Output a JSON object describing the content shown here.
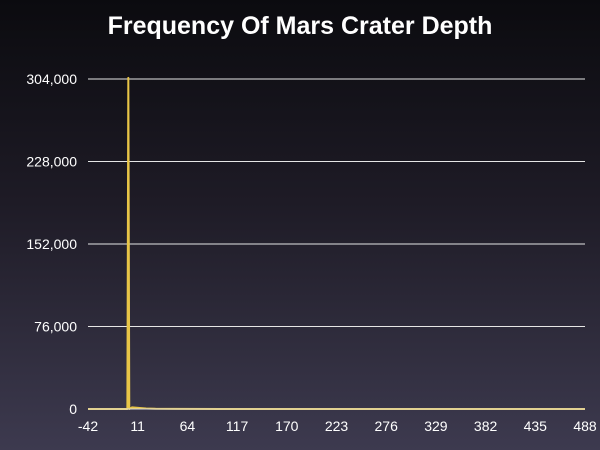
{
  "chart_data": {
    "type": "line",
    "title": "Frequency Of Mars Crater Depth",
    "xlabel": "",
    "ylabel": "",
    "x_ticks": [
      "-42",
      "11",
      "64",
      "117",
      "170",
      "223",
      "276",
      "329",
      "382",
      "435",
      "488"
    ],
    "y_ticks": [
      "0",
      "76,000",
      "152,000",
      "228,000",
      "304,000"
    ],
    "xlim": [
      -42,
      488
    ],
    "ylim": [
      0,
      304000
    ],
    "grid": true,
    "legend": "none",
    "series": [
      {
        "color": "#e8c547",
        "x": [
          -42,
          -10,
          0,
          1,
          2,
          5,
          10,
          15,
          20,
          30,
          50,
          100,
          200,
          300,
          400,
          488
        ],
        "y": [
          0,
          0,
          0,
          305000,
          0,
          1500,
          1200,
          800,
          500,
          200,
          80,
          20,
          5,
          2,
          1,
          0
        ]
      }
    ]
  }
}
